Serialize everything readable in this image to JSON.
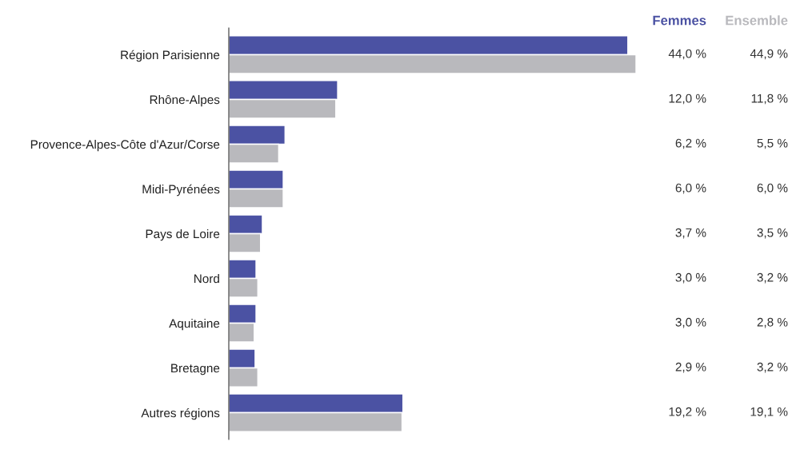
{
  "chart_data": {
    "type": "bar",
    "orientation": "horizontal",
    "legend": "top right",
    "categories": [
      "Région Parisienne",
      "Rhône-Alpes",
      "Provence-Alpes-Côte d'Azur/Corse",
      "Midi-Pyrénées",
      "Pays de Loire",
      "Nord",
      "Aquitaine",
      "Bretagne",
      "Autres régions"
    ],
    "series": [
      {
        "name": "Femmes",
        "color": "#4b52a3",
        "values": [
          44.0,
          12.0,
          6.2,
          6.0,
          3.7,
          3.0,
          3.0,
          2.9,
          19.2
        ],
        "value_labels": [
          "44,0 %",
          "12,0 %",
          "6,2 %",
          "6,0 %",
          "3,7 %",
          "3,0 %",
          "3,0 %",
          "2,9 %",
          "19,2 %"
        ]
      },
      {
        "name": "Ensemble",
        "color": "#b9b9bd",
        "values": [
          44.9,
          11.8,
          5.5,
          6.0,
          3.5,
          3.2,
          2.8,
          3.2,
          19.1
        ],
        "value_labels": [
          "44,9 %",
          "11,8 %",
          "5,5 %",
          "6,0 %",
          "3,5 %",
          "3,2 %",
          "2,8 %",
          "3,2 %",
          "19,1 %"
        ]
      }
    ]
  }
}
